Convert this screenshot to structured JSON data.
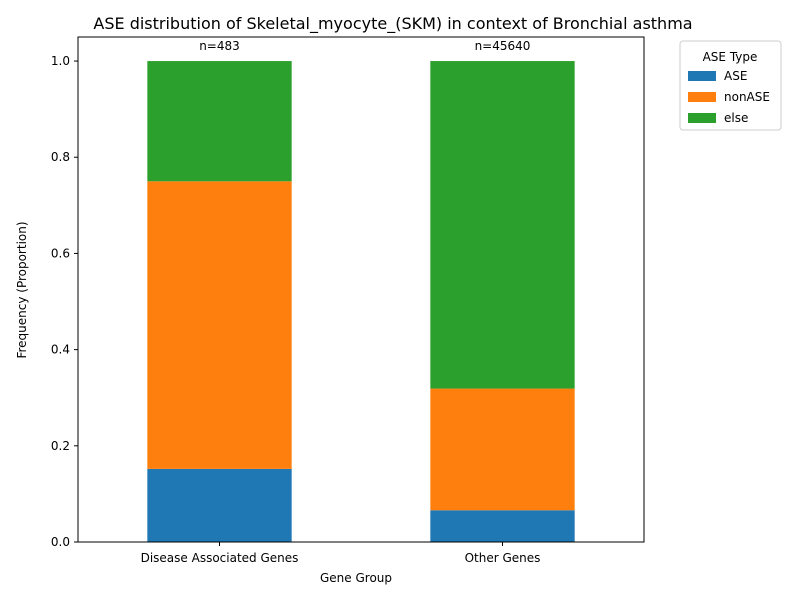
{
  "chart_data": {
    "type": "bar",
    "stacked": true,
    "title": "ASE distribution of Skeletal_myocyte_(SKM) in context of Bronchial asthma",
    "xlabel": "Gene Group",
    "ylabel": "Frequency (Proportion)",
    "categories": [
      "Disease Associated Genes",
      "Other Genes"
    ],
    "annotations": [
      "n=483",
      "n=45640"
    ],
    "ylim": [
      0,
      1.05
    ],
    "yticks": [
      "0.0",
      "0.2",
      "0.4",
      "0.6",
      "0.8",
      "1.0"
    ],
    "ytick_values": [
      0,
      0.2,
      0.4,
      0.6,
      0.8,
      1.0
    ],
    "grid": false,
    "legend": {
      "title": "ASE Type",
      "placement": "outside top-right"
    },
    "series": [
      {
        "name": "ASE",
        "color": "#1f77b4",
        "values": [
          0.152,
          0.066
        ]
      },
      {
        "name": "nonASE",
        "color": "#ff7f0e",
        "values": [
          0.598,
          0.253
        ]
      },
      {
        "name": "else",
        "color": "#2ca02c",
        "values": [
          0.25,
          0.681
        ]
      }
    ]
  }
}
